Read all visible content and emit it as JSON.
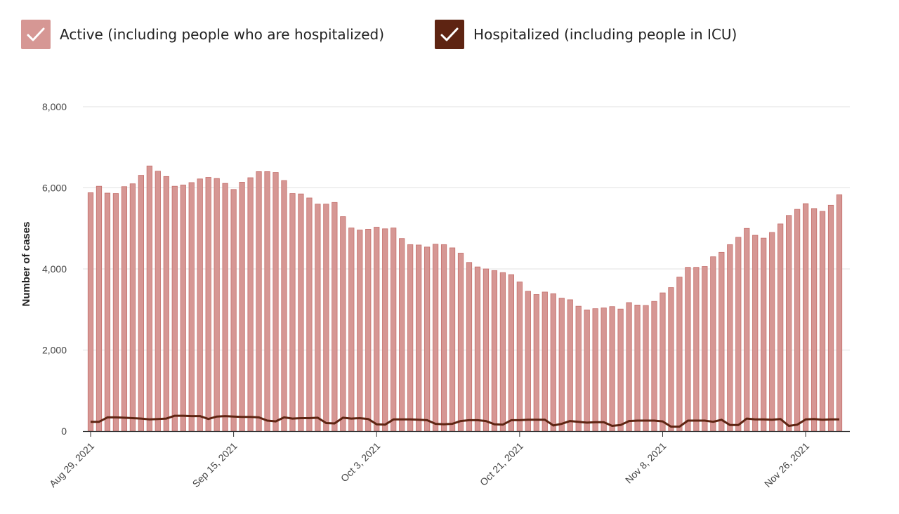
{
  "legend": {
    "active": {
      "label": "Active (including people who are hospitalized)",
      "color": "#d69794"
    },
    "hospitalized": {
      "label": "Hospitalized (including people in ICU)",
      "color": "#5e2412"
    }
  },
  "chart_data": {
    "type": "bar",
    "title": "",
    "xlabel": "",
    "ylabel": "Number of cases",
    "ylim": [
      0,
      8000
    ],
    "yticks": [
      0,
      2000,
      4000,
      6000,
      8000
    ],
    "ytick_labels": [
      "0",
      "2,000",
      "4,000",
      "6,000",
      "8,000"
    ],
    "x_tick_labels": [
      {
        "index": 0,
        "label": "Aug 29, 2021"
      },
      {
        "index": 17,
        "label": "Sep 15, 2021"
      },
      {
        "index": 34,
        "label": "Oct 3, 2021"
      },
      {
        "index": 51,
        "label": "Oct 21, 2021"
      },
      {
        "index": 68,
        "label": "Nov 8, 2021"
      },
      {
        "index": 85,
        "label": "Nov 26, 2021"
      }
    ],
    "grid": true,
    "legend_position": "top-left",
    "series": [
      {
        "name": "Active (including people who are hospitalized)",
        "type": "bar",
        "color": "#d69794",
        "values": [
          5880,
          6040,
          5870,
          5860,
          6030,
          6100,
          6310,
          6540,
          6410,
          6280,
          6040,
          6070,
          6130,
          6220,
          6260,
          6230,
          6110,
          5960,
          6140,
          6250,
          6400,
          6400,
          6380,
          6180,
          5860,
          5850,
          5750,
          5600,
          5600,
          5640,
          5290,
          5010,
          4960,
          4980,
          5030,
          4990,
          5010,
          4750,
          4600,
          4590,
          4540,
          4610,
          4600,
          4520,
          4390,
          4160,
          4050,
          4000,
          3960,
          3910,
          3860,
          3680,
          3450,
          3370,
          3430,
          3390,
          3280,
          3240,
          3080,
          2990,
          3020,
          3040,
          3070,
          3010,
          3170,
          3110,
          3100,
          3200,
          3410,
          3540,
          3800,
          4040,
          4040,
          4060,
          4300,
          4410,
          4600,
          4780,
          5000,
          4830,
          4760,
          4900,
          5110,
          5320,
          5470,
          5610,
          5490,
          5420,
          5570,
          5830
        ]
      },
      {
        "name": "Hospitalized (including people in ICU)",
        "type": "line",
        "color": "#5e2412",
        "values": [
          230,
          230,
          340,
          340,
          330,
          320,
          310,
          290,
          300,
          310,
          380,
          380,
          370,
          370,
          300,
          360,
          370,
          360,
          350,
          350,
          340,
          260,
          240,
          340,
          310,
          320,
          320,
          330,
          200,
          190,
          330,
          310,
          320,
          300,
          170,
          160,
          290,
          290,
          290,
          280,
          270,
          180,
          170,
          180,
          250,
          270,
          270,
          250,
          170,
          160,
          270,
          270,
          280,
          280,
          280,
          140,
          180,
          250,
          230,
          210,
          220,
          220,
          130,
          150,
          250,
          260,
          260,
          260,
          240,
          110,
          110,
          260,
          260,
          260,
          230,
          280,
          150,
          150,
          310,
          290,
          290,
          280,
          300,
          130,
          160,
          290,
          300,
          280,
          290,
          290
        ]
      }
    ]
  }
}
